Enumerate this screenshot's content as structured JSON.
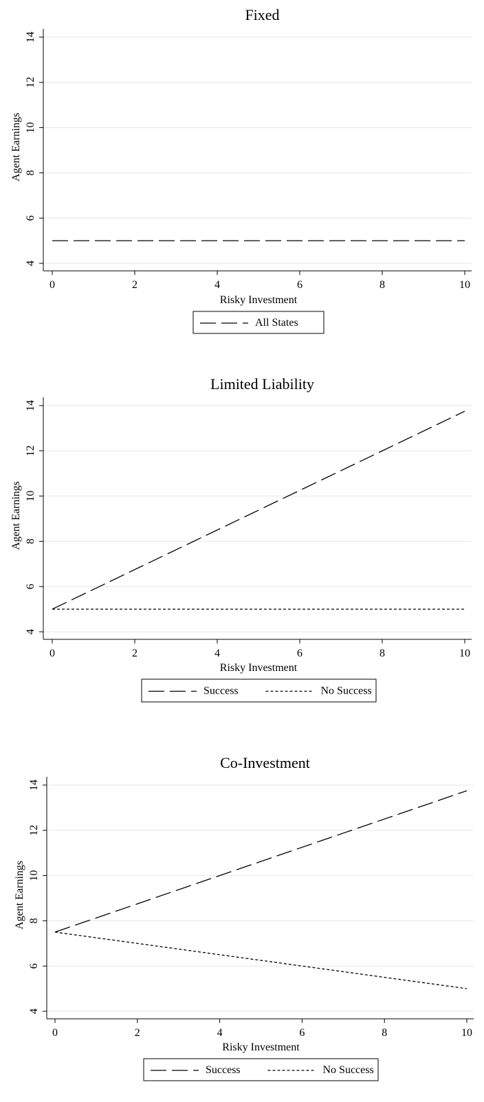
{
  "chart_data": [
    {
      "type": "line",
      "title": "Fixed",
      "xlabel": "Risky Investment",
      "ylabel": "Agent Earnings",
      "xlim": [
        0,
        10
      ],
      "ylim": [
        4,
        14
      ],
      "xticks": [
        0,
        2,
        4,
        6,
        8,
        10
      ],
      "yticks": [
        4,
        6,
        8,
        10,
        12,
        14
      ],
      "grid": true,
      "legend_position": "bottom",
      "series": [
        {
          "name": "All States",
          "style": "dashed",
          "x": [
            0,
            10
          ],
          "y": [
            5,
            5
          ]
        }
      ]
    },
    {
      "type": "line",
      "title": "Limited Liability",
      "xlabel": "Risky Investment",
      "ylabel": "Agent Earnings",
      "xlim": [
        0,
        10
      ],
      "ylim": [
        4,
        14
      ],
      "xticks": [
        0,
        2,
        4,
        6,
        8,
        10
      ],
      "yticks": [
        4,
        6,
        8,
        10,
        12,
        14
      ],
      "grid": true,
      "legend_position": "bottom",
      "series": [
        {
          "name": "Success",
          "style": "dashed",
          "x": [
            0,
            10
          ],
          "y": [
            5,
            13.75
          ]
        },
        {
          "name": "No Success",
          "style": "dotted",
          "x": [
            0,
            10
          ],
          "y": [
            5,
            5
          ]
        }
      ]
    },
    {
      "type": "line",
      "title": "Co-Investment",
      "xlabel": "Risky Investment",
      "ylabel": "Agent Earnings",
      "xlim": [
        0,
        10
      ],
      "ylim": [
        4,
        14
      ],
      "xticks": [
        0,
        2,
        4,
        6,
        8,
        10
      ],
      "yticks": [
        4,
        6,
        8,
        10,
        12,
        14
      ],
      "grid": true,
      "legend_position": "bottom",
      "series": [
        {
          "name": "Success",
          "style": "dashed",
          "x": [
            0,
            10
          ],
          "y": [
            7.5,
            13.75
          ]
        },
        {
          "name": "No Success",
          "style": "dotted",
          "x": [
            0,
            10
          ],
          "y": [
            7.5,
            5
          ]
        }
      ]
    }
  ]
}
